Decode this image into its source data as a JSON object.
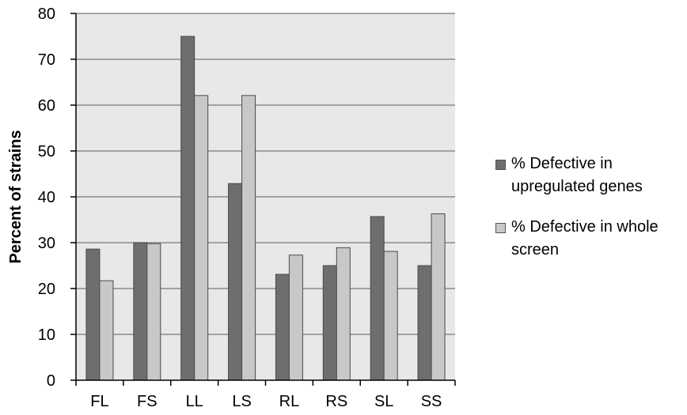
{
  "chart_data": {
    "type": "bar",
    "title": "",
    "xlabel": "",
    "ylabel": "Percent of strains",
    "ylim": [
      0,
      80
    ],
    "yticks": [
      0,
      10,
      20,
      30,
      40,
      50,
      60,
      70,
      80
    ],
    "grid": true,
    "legend_position": "right",
    "categories": [
      "FL",
      "FS",
      "LL",
      "LS",
      "RL",
      "RS",
      "SL",
      "SS"
    ],
    "series": [
      {
        "name": "% Defective in upregulated genes",
        "color": "#6e6e6e",
        "values": [
          28.6,
          30.0,
          75.0,
          42.9,
          23.1,
          25.0,
          35.7,
          25.0
        ]
      },
      {
        "name": "% Defective in whole screen",
        "color": "#c8c8c8",
        "values": [
          21.7,
          29.8,
          62.1,
          62.1,
          27.3,
          28.9,
          28.1,
          36.3
        ]
      }
    ],
    "plot_background": "#e8e8e8"
  }
}
